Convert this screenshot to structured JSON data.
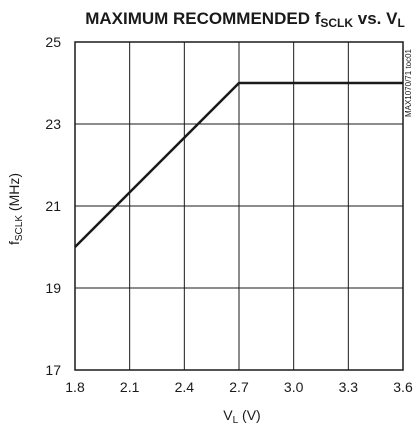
{
  "chart_data": {
    "type": "line",
    "title": {
      "prefix": "MAXIMUM RECOMMENDED f",
      "prefix_sub": "SCLK",
      "middle": " vs. V",
      "middle_sub": "L"
    },
    "xlabel": {
      "main": "V",
      "sub": "L",
      "suffix": " (V)"
    },
    "ylabel": {
      "main": "f",
      "sub": "SCLK",
      "suffix": " (MHz)"
    },
    "figure_id": "MAX1070/71 toc01",
    "xlim": [
      1.8,
      3.6
    ],
    "ylim": [
      17,
      25
    ],
    "x_ticks": [
      1.8,
      2.1,
      2.4,
      2.7,
      3.0,
      3.3,
      3.6
    ],
    "x_tick_labels": [
      "1.8",
      "2.1",
      "2.4",
      "2.7",
      "3.0",
      "3.3",
      "3.6"
    ],
    "y_ticks": [
      17,
      19,
      21,
      23,
      25
    ],
    "y_tick_labels": [
      "17",
      "19",
      "21",
      "23",
      "25"
    ],
    "grid": true,
    "series": [
      {
        "x": [
          1.8,
          2.7,
          3.6
        ],
        "y": [
          20,
          24,
          24
        ]
      }
    ]
  }
}
